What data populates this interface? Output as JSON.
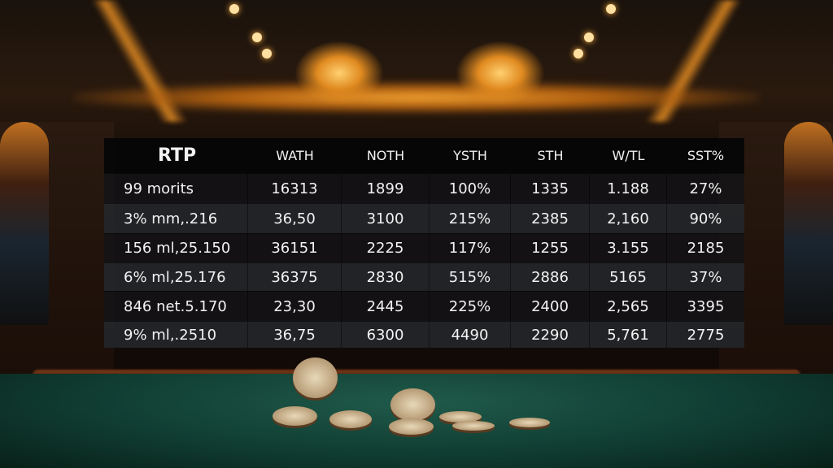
{
  "table": {
    "headers": [
      "RTP",
      "WATH",
      "NOTH",
      "YSTH",
      "STH",
      "W/TL",
      "SST%"
    ],
    "rows": [
      [
        "99 morits",
        "16313",
        "1899",
        "100%",
        "1335",
        "1.188",
        "27%"
      ],
      [
        "3% mm,.216",
        "36,50",
        "3100",
        "215%",
        "2385",
        "2,160",
        "90%"
      ],
      [
        "156 ml,25.150",
        "36151",
        "2225",
        "117%",
        "1255",
        "3.155",
        "2185"
      ],
      [
        "6% ml,25.176",
        "36375",
        "2830",
        "515%",
        "2886",
        "5165",
        "37%"
      ],
      [
        "846 net.5.170",
        "23,30",
        "2445",
        "225%",
        "2400",
        "2,565",
        "3395"
      ],
      [
        "9% ml,.2510",
        "36,75",
        "6300",
        "4490",
        "2290",
        "5,761",
        "2775"
      ]
    ]
  }
}
